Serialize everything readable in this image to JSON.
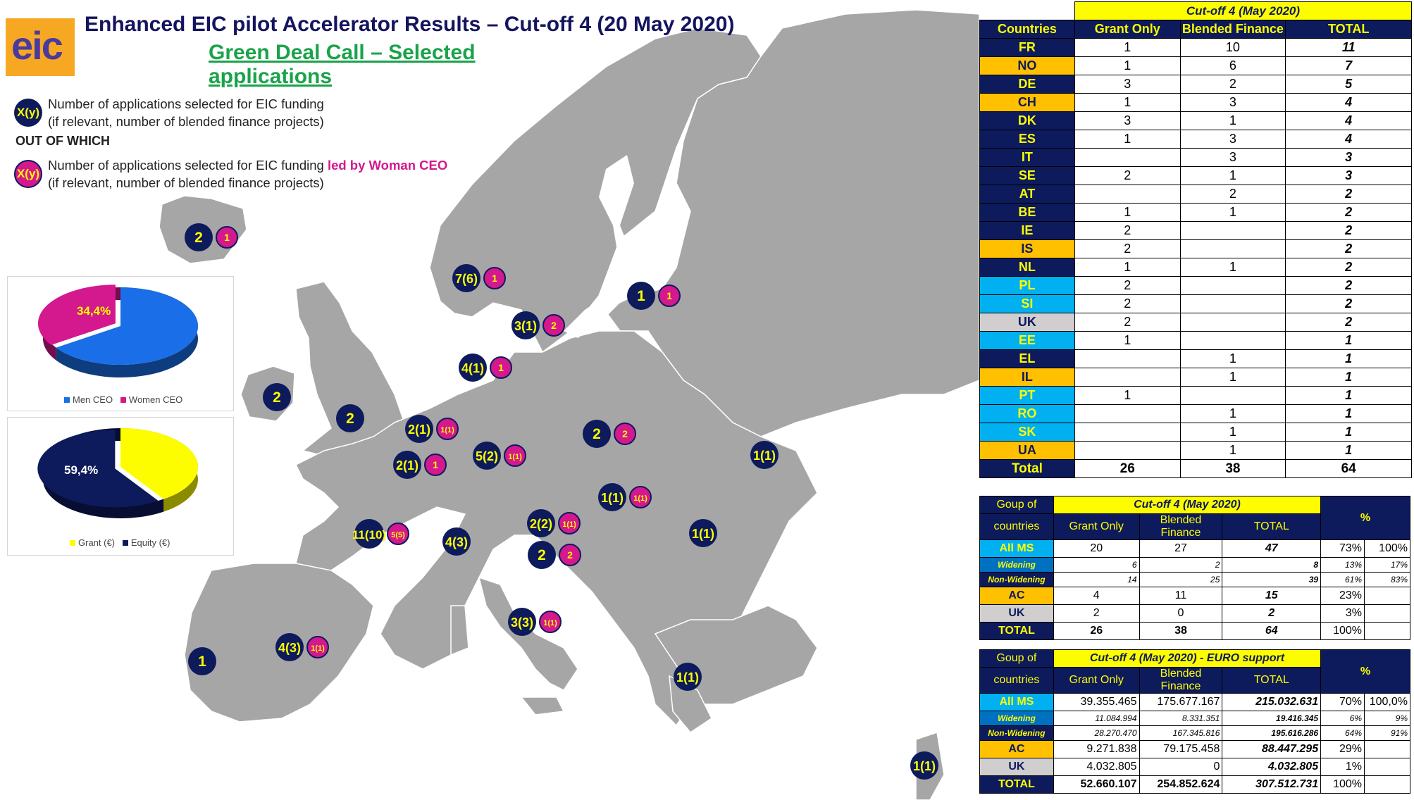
{
  "header": {
    "title": "Enhanced EIC pilot Accelerator Results – Cut-off 4 (20 May 2020)",
    "subtitle": "Green Deal Call – Selected applications",
    "logo_text": "eic"
  },
  "legend": {
    "marker1": "X(y)",
    "line1a": "Number of applications selected for EIC funding",
    "line1b": "(if relevant, number of blended finance projects)",
    "out_of_which": "OUT OF WHICH",
    "marker2": "X(y)",
    "line2a": "Number of applications selected for EIC funding ",
    "line2a_em": "led by Woman CEO",
    "line2b": "(if relevant, number of blended finance projects)"
  },
  "pie_gender": {
    "label": "34,4%",
    "legend": [
      "Men CEO",
      "Women CEO"
    ],
    "values": [
      65.6,
      34.4
    ],
    "colors": [
      "#1a6fe8",
      "#d4188e"
    ]
  },
  "pie_funding": {
    "label": "59,4%",
    "legend": [
      "Grant (€)",
      "Equity (€)"
    ],
    "values": [
      40.6,
      59.4
    ],
    "colors": [
      "#fdfd00",
      "#0d1a5c"
    ]
  },
  "markers": [
    {
      "id": "iceland",
      "main": "2",
      "woman": "1"
    },
    {
      "id": "norway",
      "main": "7(6)",
      "woman": "1"
    },
    {
      "id": "estonia",
      "main": "1",
      "woman": "1"
    },
    {
      "id": "sweden",
      "main": "3(1)",
      "woman": "2"
    },
    {
      "id": "denmark",
      "main": "4(1)",
      "woman": "1"
    },
    {
      "id": "ireland",
      "main": "2",
      "woman": ""
    },
    {
      "id": "uk",
      "main": "2",
      "woman": ""
    },
    {
      "id": "netherlands",
      "main": "2(1)",
      "woman": "1(1)"
    },
    {
      "id": "belgium",
      "main": "2(1)",
      "woman": "1"
    },
    {
      "id": "germany",
      "main": "5(2)",
      "woman": "1(1)"
    },
    {
      "id": "poland",
      "main": "2",
      "woman": "2"
    },
    {
      "id": "ukraine",
      "main": "1(1)",
      "woman": ""
    },
    {
      "id": "slovakia",
      "main": "1(1)",
      "woman": "1(1)"
    },
    {
      "id": "austria",
      "main": "2(2)",
      "woman": "1(1)"
    },
    {
      "id": "slovenia",
      "main": "2",
      "woman": "2"
    },
    {
      "id": "romania",
      "main": "1(1)",
      "woman": ""
    },
    {
      "id": "france",
      "main": "11(10)",
      "woman": "5(5)"
    },
    {
      "id": "switzerland",
      "main": "4(3)",
      "woman": ""
    },
    {
      "id": "italy",
      "main": "3(3)",
      "woman": "1(1)"
    },
    {
      "id": "spain",
      "main": "4(3)",
      "woman": "1(1)"
    },
    {
      "id": "portugal",
      "main": "1",
      "woman": ""
    },
    {
      "id": "greece",
      "main": "1(1)",
      "woman": ""
    },
    {
      "id": "israel",
      "main": "1(1)",
      "woman": ""
    }
  ],
  "table_countries": {
    "period": "Cut-off 4 (May 2020)",
    "headers": [
      "Countries",
      "Grant Only",
      "Blended Finance",
      "TOTAL"
    ],
    "rows": [
      {
        "c": "FR",
        "g": "1",
        "b": "10",
        "t": "11",
        "style": "cNavy"
      },
      {
        "c": "NO",
        "g": "1",
        "b": "6",
        "t": "7",
        "style": "cOrange"
      },
      {
        "c": "DE",
        "g": "3",
        "b": "2",
        "t": "5",
        "style": "cNavy"
      },
      {
        "c": "CH",
        "g": "1",
        "b": "3",
        "t": "4",
        "style": "cOrange"
      },
      {
        "c": "DK",
        "g": "3",
        "b": "1",
        "t": "4",
        "style": "cNavy"
      },
      {
        "c": "ES",
        "g": "1",
        "b": "3",
        "t": "4",
        "style": "cNavy"
      },
      {
        "c": "IT",
        "g": "",
        "b": "3",
        "t": "3",
        "style": "cNavy"
      },
      {
        "c": "SE",
        "g": "2",
        "b": "1",
        "t": "3",
        "style": "cNavy"
      },
      {
        "c": "AT",
        "g": "",
        "b": "2",
        "t": "2",
        "style": "cNavy"
      },
      {
        "c": "BE",
        "g": "1",
        "b": "1",
        "t": "2",
        "style": "cNavy"
      },
      {
        "c": "IE",
        "g": "2",
        "b": "",
        "t": "2",
        "style": "cNavy"
      },
      {
        "c": "IS",
        "g": "2",
        "b": "",
        "t": "2",
        "style": "cOrange"
      },
      {
        "c": "NL",
        "g": "1",
        "b": "1",
        "t": "2",
        "style": "cNavy"
      },
      {
        "c": "PL",
        "g": "2",
        "b": "",
        "t": "2",
        "style": "cCyan"
      },
      {
        "c": "SI",
        "g": "2",
        "b": "",
        "t": "2",
        "style": "cCyan"
      },
      {
        "c": "UK",
        "g": "2",
        "b": "",
        "t": "2",
        "style": "cGray"
      },
      {
        "c": "EE",
        "g": "1",
        "b": "",
        "t": "1",
        "style": "cCyan"
      },
      {
        "c": "EL",
        "g": "",
        "b": "1",
        "t": "1",
        "style": "cNavy"
      },
      {
        "c": "IL",
        "g": "",
        "b": "1",
        "t": "1",
        "style": "cOrange"
      },
      {
        "c": "PT",
        "g": "1",
        "b": "",
        "t": "1",
        "style": "cCyan"
      },
      {
        "c": "RO",
        "g": "",
        "b": "1",
        "t": "1",
        "style": "cCyan"
      },
      {
        "c": "SK",
        "g": "",
        "b": "1",
        "t": "1",
        "style": "cCyan"
      },
      {
        "c": "UA",
        "g": "",
        "b": "1",
        "t": "1",
        "style": "cOrange"
      }
    ],
    "total": {
      "label": "Total",
      "g": "26",
      "b": "38",
      "t": "64"
    }
  },
  "table_groups": {
    "group_label_1": "Goup of",
    "group_label_2": "countries",
    "period": "Cut-off 4 (May 2020)",
    "headers": [
      "Grant Only",
      "Blended Finance",
      "TOTAL"
    ],
    "pct": "%",
    "rows": [
      {
        "c": "All MS",
        "g": "20",
        "b": "27",
        "t": "47",
        "p1": "73%",
        "p2": "100%",
        "kind": "big",
        "style": "cCyanB"
      },
      {
        "c": "Widening",
        "g": "6",
        "b": "2",
        "t": "8",
        "p1": "13%",
        "p2": "17%",
        "kind": "small",
        "style": "cBlueS"
      },
      {
        "c": "Non-Widening",
        "g": "14",
        "b": "25",
        "t": "39",
        "p1": "61%",
        "p2": "83%",
        "kind": "small",
        "style": "cNavyS"
      },
      {
        "c": "AC",
        "g": "4",
        "b": "11",
        "t": "15",
        "p1": "23%",
        "p2": "",
        "kind": "big",
        "style": "cOrange"
      },
      {
        "c": "UK",
        "g": "2",
        "b": "0",
        "t": "2",
        "p1": "3%",
        "p2": "",
        "kind": "big",
        "style": "cGray"
      },
      {
        "c": "TOTAL",
        "g": "26",
        "b": "38",
        "t": "64",
        "p1": "100%",
        "p2": "",
        "kind": "total",
        "style": "cNavy"
      }
    ]
  },
  "table_euro": {
    "group_label_1": "Goup of",
    "group_label_2": "countries",
    "period": "Cut-off 4 (May 2020) - EURO support",
    "headers": [
      "Grant Only",
      "Blended Finance",
      "TOTAL"
    ],
    "pct": "%",
    "rows": [
      {
        "c": "All MS",
        "g": "39.355.465",
        "b": "175.677.167",
        "t": "215.032.631",
        "p1": "70%",
        "p2": "100,0%",
        "kind": "big",
        "style": "cCyanB"
      },
      {
        "c": "Widening",
        "g": "11.084.994",
        "b": "8.331.351",
        "t": "19.416.345",
        "p1": "6%",
        "p2": "9%",
        "kind": "small",
        "style": "cBlueS"
      },
      {
        "c": "Non-Widening",
        "g": "28.270.470",
        "b": "167.345.816",
        "t": "195.616.286",
        "p1": "64%",
        "p2": "91%",
        "kind": "small",
        "style": "cNavyS"
      },
      {
        "c": "AC",
        "g": "9.271.838",
        "b": "79.175.458",
        "t": "88.447.295",
        "p1": "29%",
        "p2": "",
        "kind": "big",
        "style": "cOrange"
      },
      {
        "c": "UK",
        "g": "4.032.805",
        "b": "0",
        "t": "4.032.805",
        "p1": "1%",
        "p2": "",
        "kind": "big",
        "style": "cGray"
      },
      {
        "c": "TOTAL",
        "g": "52.660.107",
        "b": "254.852.624",
        "t": "307.512.731",
        "p1": "100%",
        "p2": "",
        "kind": "total",
        "style": "cNavy"
      }
    ]
  },
  "colors": {
    "navy": "#0d1a5c",
    "magenta": "#d4188e",
    "yellow": "#fdfd00",
    "land": "#a6a6a6",
    "orange": "#ffc000",
    "cyan": "#00b0f0"
  }
}
